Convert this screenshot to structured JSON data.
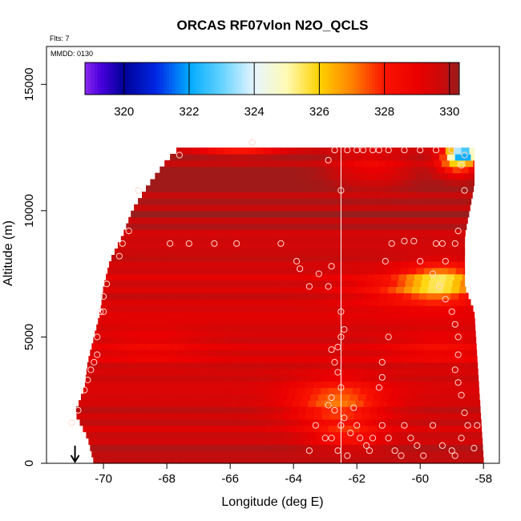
{
  "chart_data": {
    "type": "heatmap",
    "title": "ORCAS RF07vlon N2O_QCLS",
    "notes": [
      "Flts: 7",
      "MMDD: 0130"
    ],
    "xlabel": "Longitude (deg E)",
    "ylabel": "Altitude (m)",
    "xlim": [
      -71.8,
      -57.5
    ],
    "ylim": [
      0,
      16500
    ],
    "xticks": [
      -70,
      -68,
      -66,
      -64,
      -62,
      -60,
      -58
    ],
    "yticks": [
      0,
      5000,
      10000,
      15000
    ],
    "grid": false,
    "colorbar": {
      "range": [
        318.8,
        330.3
      ],
      "ticks": [
        320,
        322,
        324,
        326,
        328,
        330
      ],
      "placement": "top-inside"
    },
    "vertical_marker_lon": -62.5,
    "arrow_marker_lon": -70.9,
    "field": {
      "lon_step": 0.25,
      "alt_step": 250,
      "left_boundary": [
        [
          0,
          -70.3
        ],
        [
          1000,
          -70.5
        ],
        [
          2000,
          -70.9
        ],
        [
          3000,
          -70.6
        ],
        [
          4000,
          -70.5
        ],
        [
          5000,
          -70.3
        ],
        [
          6000,
          -70.1
        ],
        [
          7000,
          -70.0
        ],
        [
          8000,
          -69.8
        ],
        [
          9000,
          -69.4
        ],
        [
          10000,
          -69.1
        ],
        [
          11000,
          -68.6
        ],
        [
          12000,
          -68.0
        ],
        [
          12500,
          -67.6
        ]
      ],
      "right_boundary": [
        [
          0,
          -58.0
        ],
        [
          2000,
          -58.1
        ],
        [
          4000,
          -58.2
        ],
        [
          6000,
          -58.3
        ],
        [
          7000,
          -58.6
        ],
        [
          9000,
          -58.6
        ],
        [
          11000,
          -58.3
        ],
        [
          12500,
          -58.3
        ]
      ],
      "base_by_altitude": [
        [
          0,
          329.9
        ],
        [
          1000,
          329.7
        ],
        [
          2000,
          329.6
        ],
        [
          3000,
          329.5
        ],
        [
          4000,
          329.5
        ],
        [
          5000,
          329.4
        ],
        [
          6000,
          329.4
        ],
        [
          7000,
          329.5
        ],
        [
          8000,
          329.6
        ],
        [
          9000,
          329.7
        ],
        [
          10000,
          330.0
        ],
        [
          11000,
          330.1
        ],
        [
          12000,
          330.1
        ],
        [
          12500,
          330.0
        ]
      ],
      "features": [
        {
          "lon": -62.6,
          "alt": 2400,
          "dlon": 1.4,
          "dalt": 900,
          "delta": -2.4
        },
        {
          "lon": -62.3,
          "alt": 1100,
          "dlon": 1.1,
          "dalt": 500,
          "delta": -1.3
        },
        {
          "lon": -59.3,
          "alt": 7200,
          "dlon": 1.1,
          "dalt": 700,
          "delta": -3.2
        },
        {
          "lon": -60.3,
          "alt": 6900,
          "dlon": 1.8,
          "dalt": 650,
          "delta": -1.6
        },
        {
          "lon": -61.5,
          "alt": 11700,
          "dlon": 1.2,
          "dalt": 700,
          "delta": -1.2
        },
        {
          "lon": -65.7,
          "alt": 12600,
          "dlon": 1.3,
          "dalt": 300,
          "delta": -3.0
        },
        {
          "lon": -58.8,
          "alt": 11900,
          "dlon": 0.6,
          "dalt": 500,
          "delta": -3.5
        },
        {
          "lon": -58.6,
          "alt": 12250,
          "dlon": 0.5,
          "dalt": 250,
          "delta": -7.5
        },
        {
          "lon": -59.5,
          "alt": 4600,
          "dlon": 1.4,
          "dalt": 600,
          "delta": -0.8
        },
        {
          "lon": -68.5,
          "alt": 4700,
          "dlon": 1.6,
          "dalt": 700,
          "delta": -0.6
        }
      ]
    },
    "sample_points": [
      [
        -71.0,
        1600
      ],
      [
        -70.8,
        2100
      ],
      [
        -70.6,
        2900
      ],
      [
        -70.5,
        3300
      ],
      [
        -70.4,
        3700
      ],
      [
        -70.3,
        4000
      ],
      [
        -70.2,
        4300
      ],
      [
        -70.2,
        5000
      ],
      [
        -70.1,
        6000
      ],
      [
        -70.0,
        6000
      ],
      [
        -70.0,
        6600
      ],
      [
        -69.9,
        7100
      ],
      [
        -69.5,
        8200
      ],
      [
        -69.4,
        8700
      ],
      [
        -69.2,
        9200
      ],
      [
        -68.9,
        10800
      ],
      [
        -67.9,
        8700
      ],
      [
        -67.3,
        8700
      ],
      [
        -66.5,
        8700
      ],
      [
        -65.8,
        8700
      ],
      [
        -64.4,
        8700
      ],
      [
        -67.6,
        12200
      ],
      [
        -65.3,
        12700
      ],
      [
        -63.9,
        8000
      ],
      [
        -63.8,
        7700
      ],
      [
        -63.5,
        7000
      ],
      [
        -63.2,
        7500
      ],
      [
        -62.9,
        7000
      ],
      [
        -62.8,
        7800
      ],
      [
        -62.5,
        10800
      ],
      [
        -62.5,
        6000
      ],
      [
        -62.5,
        5000
      ],
      [
        -62.4,
        5300
      ],
      [
        -62.6,
        4600
      ],
      [
        -62.8,
        4500
      ],
      [
        -62.7,
        4000
      ],
      [
        -62.6,
        3600
      ],
      [
        -62.5,
        3000
      ],
      [
        -62.8,
        2600
      ],
      [
        -62.9,
        2300
      ],
      [
        -62.7,
        2100
      ],
      [
        -62.5,
        1500
      ],
      [
        -62.8,
        1000
      ],
      [
        -62.4,
        1800
      ],
      [
        -62.6,
        500
      ],
      [
        -62.3,
        300
      ],
      [
        -62.0,
        1500
      ],
      [
        -61.9,
        1000
      ],
      [
        -61.7,
        700
      ],
      [
        -61.6,
        500
      ],
      [
        -61.5,
        1000
      ],
      [
        -61.3,
        3000
      ],
      [
        -61.2,
        3400
      ],
      [
        -61.2,
        4000
      ],
      [
        -61.0,
        5000
      ],
      [
        -61.2,
        1500
      ],
      [
        -61.0,
        1000
      ],
      [
        -60.8,
        500
      ],
      [
        -60.6,
        300
      ],
      [
        -60.5,
        1500
      ],
      [
        -60.3,
        1000
      ],
      [
        -60.1,
        700
      ],
      [
        -59.9,
        300
      ],
      [
        -59.6,
        1500
      ],
      [
        -59.3,
        700
      ],
      [
        -59.0,
        500
      ],
      [
        -58.9,
        300
      ],
      [
        -58.7,
        1000
      ],
      [
        -58.5,
        1500
      ],
      [
        -58.6,
        2000
      ],
      [
        -58.7,
        2700
      ],
      [
        -58.8,
        3200
      ],
      [
        -58.9,
        3700
      ],
      [
        -58.8,
        4300
      ],
      [
        -58.8,
        5000
      ],
      [
        -58.9,
        5500
      ],
      [
        -59.0,
        6000
      ],
      [
        -59.2,
        6500
      ],
      [
        -59.4,
        7000
      ],
      [
        -59.6,
        7500
      ],
      [
        -59.2,
        8000
      ],
      [
        -59.3,
        8700
      ],
      [
        -59.5,
        8700
      ],
      [
        -58.9,
        8700
      ],
      [
        -58.8,
        9200
      ],
      [
        -58.6,
        10800
      ],
      [
        -58.7,
        11800
      ],
      [
        -58.6,
        12200
      ],
      [
        -59.0,
        12400
      ],
      [
        -59.5,
        12400
      ],
      [
        -60.0,
        12400
      ],
      [
        -60.5,
        12400
      ],
      [
        -61.0,
        12400
      ],
      [
        -61.3,
        12400
      ],
      [
        -61.5,
        12400
      ],
      [
        -61.8,
        12400
      ],
      [
        -62.0,
        12400
      ],
      [
        -62.3,
        12400
      ],
      [
        -62.7,
        12400
      ],
      [
        -62.9,
        12000
      ],
      [
        -60.5,
        8800
      ],
      [
        -60.2,
        8800
      ],
      [
        -60.0,
        8000
      ],
      [
        -61.1,
        8000
      ],
      [
        -60.9,
        8700
      ],
      [
        -63.3,
        1500
      ],
      [
        -63.0,
        1000
      ],
      [
        -63.5,
        500
      ],
      [
        -62.2,
        1200
      ],
      [
        -62.1,
        2200
      ],
      [
        -58.2,
        1500
      ],
      [
        -58.3,
        600
      ]
    ]
  }
}
